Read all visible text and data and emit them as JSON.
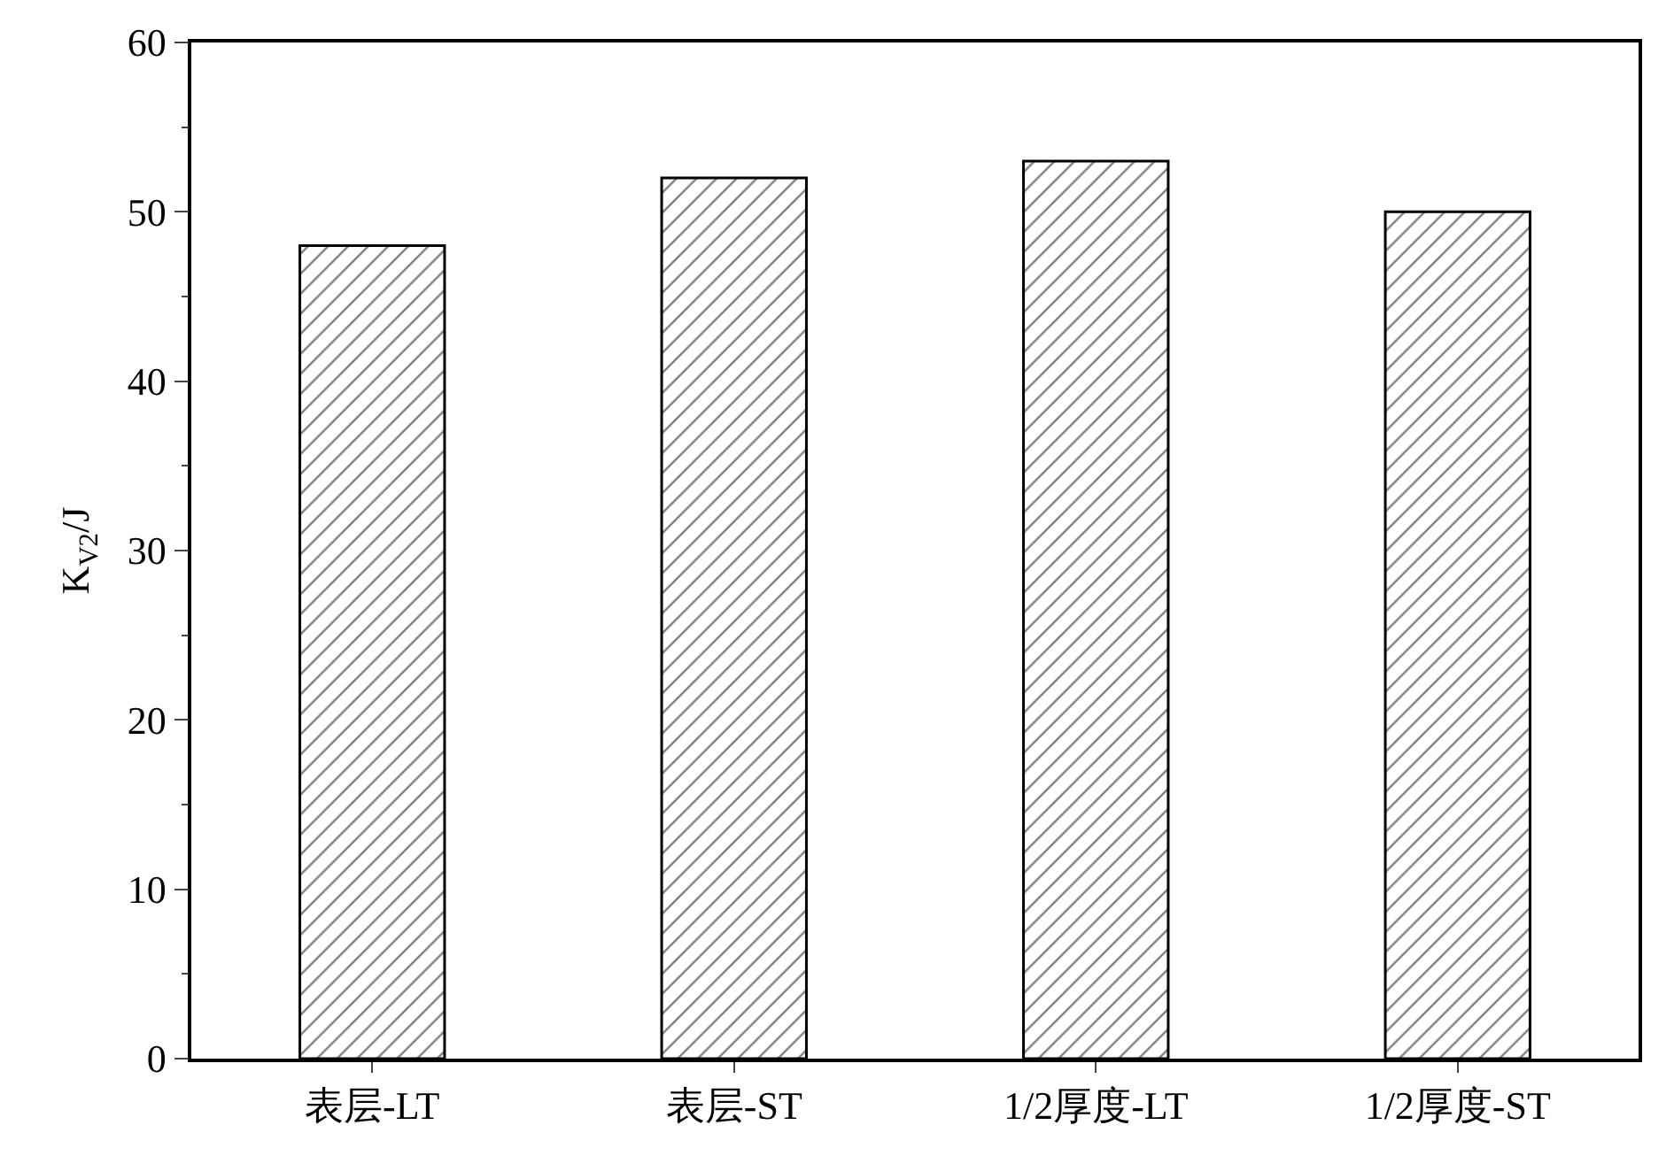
{
  "chart_data": {
    "type": "bar",
    "ylabel": "K$_{V2}$/J",
    "categories": [
      "表层-LT",
      "表层-ST",
      "1/2厚度-LT",
      "1/2厚度-ST"
    ],
    "values": [
      48,
      52,
      53,
      50
    ],
    "color": "#000000",
    "ylim": [
      0,
      60
    ],
    "yticks": [
      0,
      10,
      20,
      30,
      40,
      50,
      60
    ]
  }
}
